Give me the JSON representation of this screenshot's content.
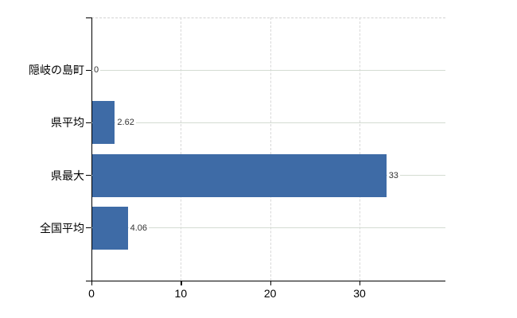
{
  "chart_data": {
    "type": "bar",
    "orientation": "horizontal",
    "title": "",
    "xlabel": "",
    "ylabel": "",
    "categories": [
      "隠岐の島町",
      "県平均",
      "県最大",
      "全国平均"
    ],
    "values": [
      0,
      2.62,
      33,
      4.06
    ],
    "value_labels": [
      "0",
      "2.62",
      "33",
      "4.06"
    ],
    "x_ticks": [
      0,
      10,
      20,
      30
    ],
    "x_tick_labels": [
      "0",
      "10",
      "20",
      "30"
    ],
    "xlim": [
      0,
      39.6
    ],
    "grid": "vertical-dashed-plus-row-lines",
    "legend": "none",
    "colors": {
      "bar": "#3e6ba6",
      "row_line": "#d4dcd2",
      "gridline": "#d8d8d8",
      "plot_border": "#d2d2d2",
      "axis": "#000000",
      "value_text": "#333333",
      "label_text": "#000000"
    }
  }
}
